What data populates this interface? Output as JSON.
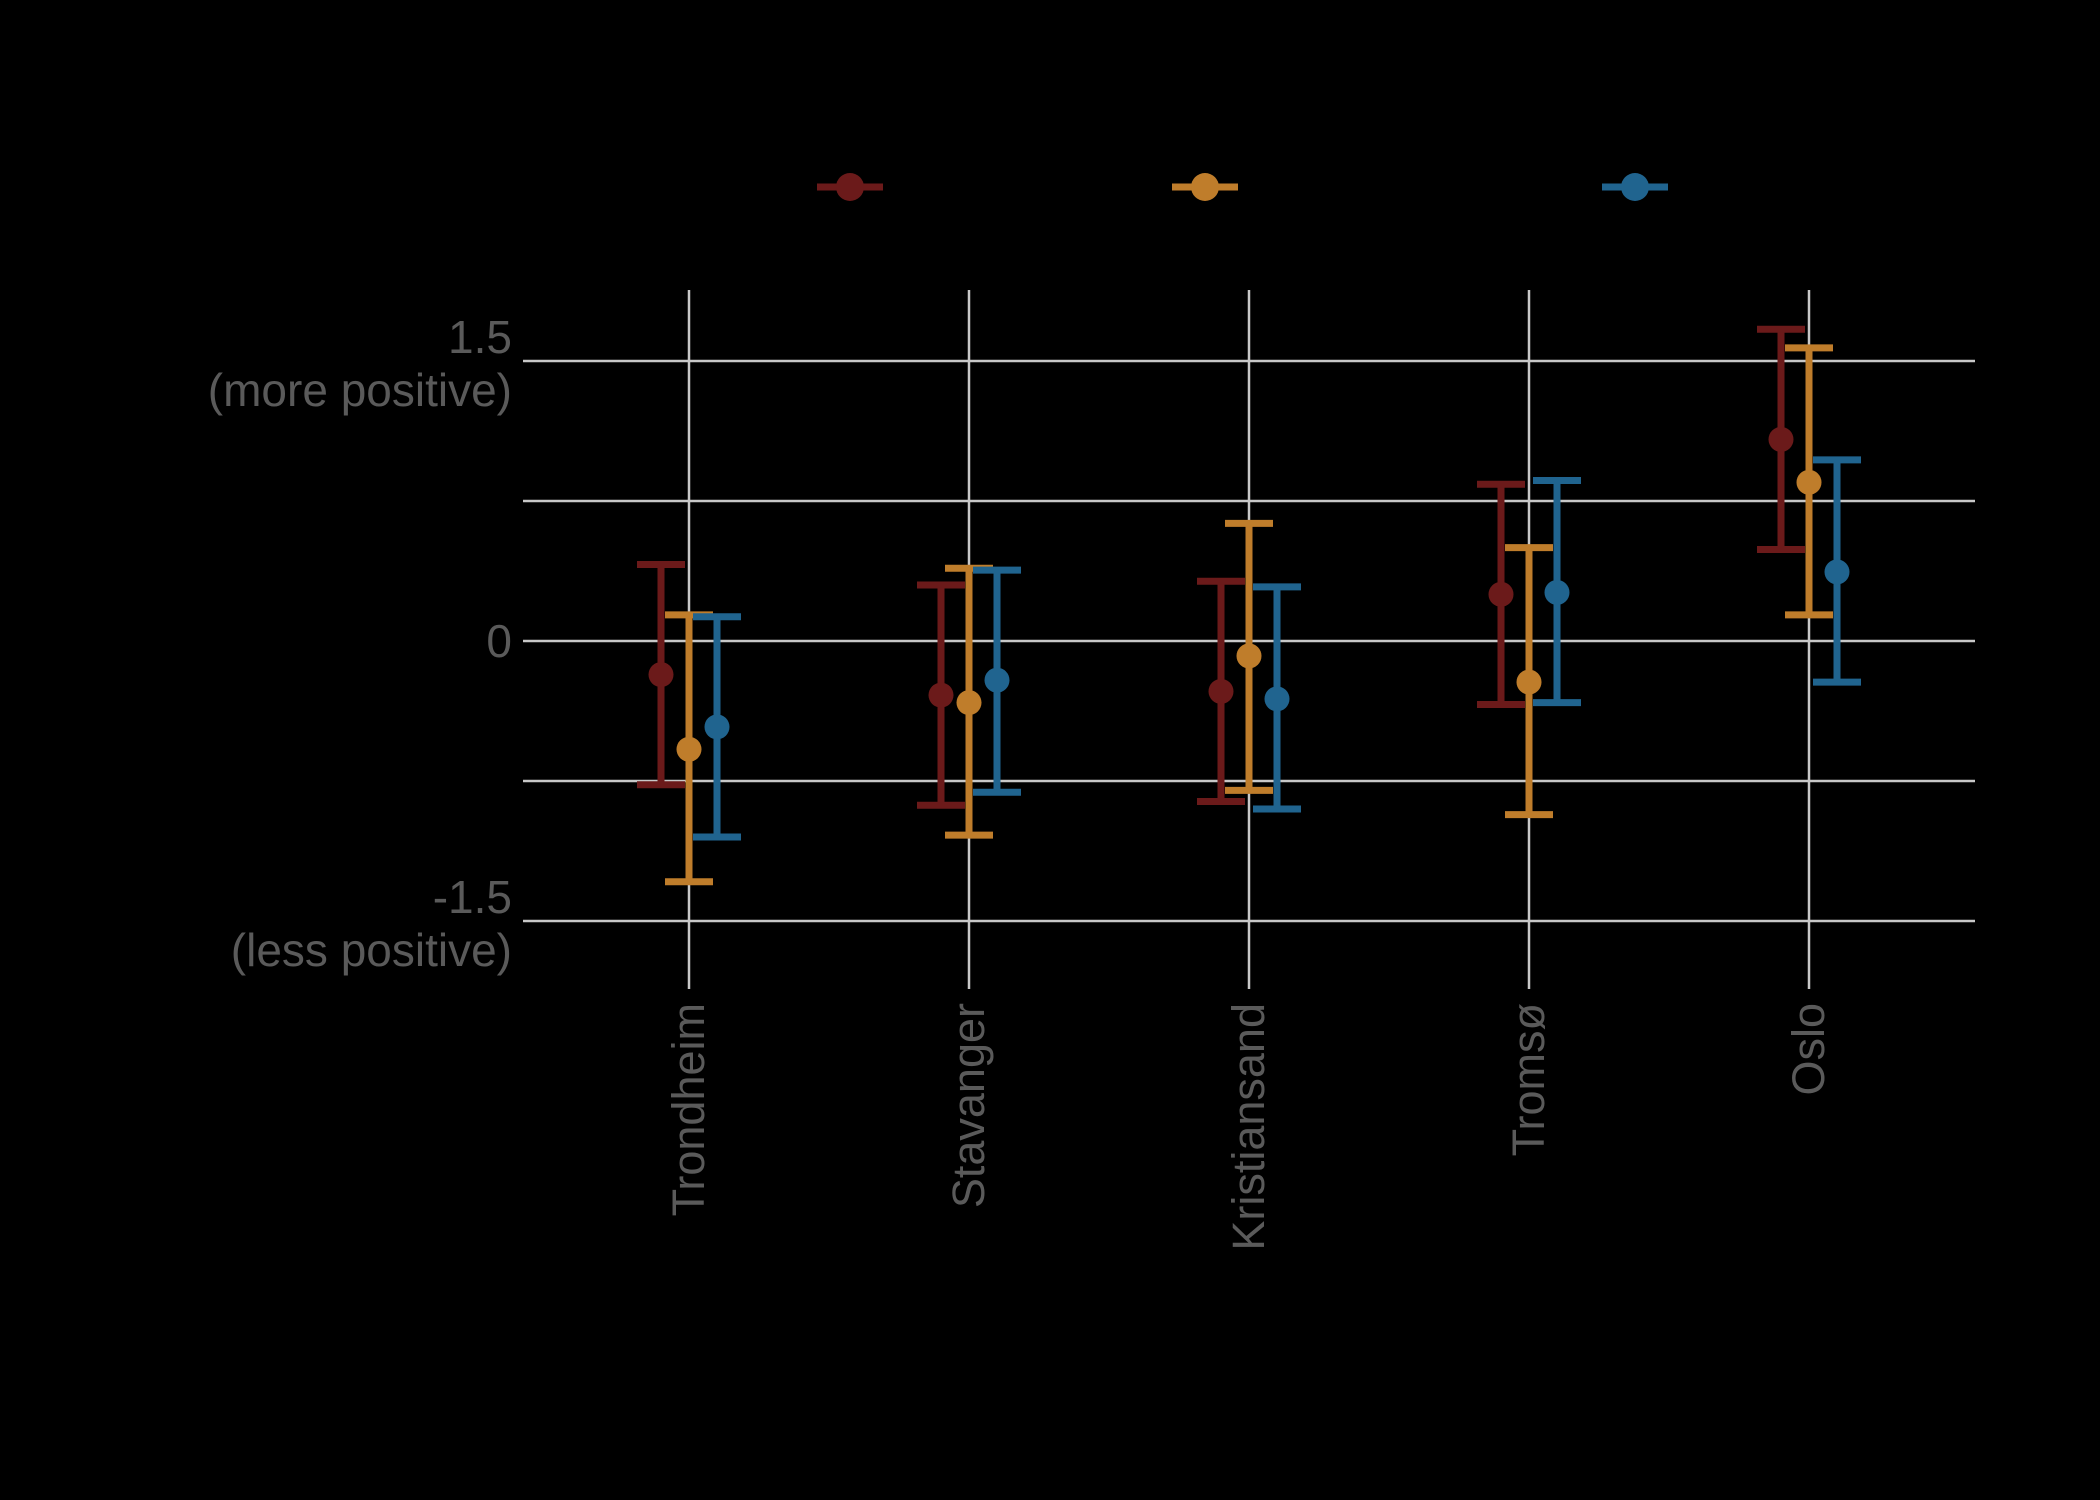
{
  "colors": {
    "background": "#000000",
    "gridline": "#C8C8C8",
    "axis_text": "#5A5A5A",
    "series_red": "#6B1A1A",
    "series_orange": "#BF7D2B",
    "series_blue": "#20648F"
  },
  "chart_data": {
    "type": "scatter",
    "subtype": "pointrange-errorbar",
    "categories": [
      "Trondheim",
      "Stavanger",
      "Kristiansand",
      "Tromsø",
      "Oslo"
    ],
    "yaxis": {
      "tick_values": [
        1.5,
        0,
        -1.5
      ],
      "gridline_values": [
        1.5,
        0.75,
        0,
        -0.75,
        -1.5
      ],
      "ylim": [
        -1.87,
        1.88
      ],
      "label_lines": [
        "1.5",
        "(more positive)",
        "0",
        "-1.5",
        "(less positive)"
      ]
    },
    "legend": {
      "position": "top",
      "note": "three marker keys visible; legend label text not visible against background",
      "entries": [
        {
          "series": "red",
          "color": "#6B1A1A"
        },
        {
          "series": "orange",
          "color": "#BF7D2B"
        },
        {
          "series": "blue",
          "color": "#20648F"
        }
      ]
    },
    "series": [
      {
        "id": "red",
        "color": "#6B1A1A",
        "means": [
          -0.18,
          -0.29,
          -0.27,
          0.25,
          1.08
        ],
        "ci_low": [
          -0.77,
          -0.88,
          -0.86,
          -0.34,
          0.49
        ],
        "ci_high": [
          0.41,
          0.3,
          0.32,
          0.84,
          1.67
        ]
      },
      {
        "id": "orange",
        "color": "#BF7D2B",
        "means": [
          -0.58,
          -0.33,
          -0.08,
          -0.22,
          0.85
        ],
        "ci_low": [
          -1.29,
          -1.04,
          -0.8,
          -0.93,
          0.14
        ],
        "ci_high": [
          0.14,
          0.39,
          0.63,
          0.5,
          1.57
        ]
      },
      {
        "id": "blue",
        "color": "#20648F",
        "means": [
          -0.46,
          -0.21,
          -0.31,
          0.26,
          0.37
        ],
        "ci_low": [
          -1.05,
          -0.81,
          -0.9,
          -0.33,
          -0.22
        ],
        "ci_high": [
          0.13,
          0.38,
          0.29,
          0.86,
          0.97
        ]
      }
    ]
  }
}
